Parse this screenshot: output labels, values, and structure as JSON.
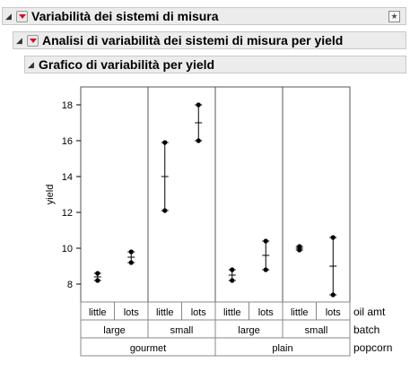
{
  "headers": {
    "level1": "Variabilità dei sistemi di misura",
    "level2": "Analisi di variabilità dei sistemi di misura per yield",
    "level3": "Grafico di variabilità per yield"
  },
  "icons": {
    "disclosure": "disclosure-triangle-icon",
    "menu": "red-triangle-menu-icon",
    "pin": "pin-icon"
  },
  "colors": {
    "menu_arrow": "#d4122a",
    "header_bg": "#ececec"
  },
  "chart_data": {
    "type": "variability",
    "ylabel": "yield",
    "ylim": [
      7,
      19
    ],
    "yticks": [
      8,
      10,
      12,
      14,
      16,
      18
    ],
    "factor_labels": [
      "oil amt",
      "batch",
      "popcorn"
    ],
    "popcorn": [
      {
        "label": "gourmet",
        "batches": [
          {
            "label": "large",
            "oil": [
              {
                "label": "little",
                "points": [
                  8.2,
                  8.6
                ],
                "mean": 8.4
              },
              {
                "label": "lots",
                "points": [
                  9.2,
                  9.8
                ],
                "mean": 9.5
              }
            ]
          },
          {
            "label": "small",
            "oil": [
              {
                "label": "little",
                "points": [
                  12.1,
                  15.9
                ],
                "mean": 14.0
              },
              {
                "label": "lots",
                "points": [
                  16.0,
                  18.0
                ],
                "mean": 17.0
              }
            ]
          }
        ]
      },
      {
        "label": "plain",
        "batches": [
          {
            "label": "large",
            "oil": [
              {
                "label": "little",
                "points": [
                  8.2,
                  8.8
                ],
                "mean": 8.5
              },
              {
                "label": "lots",
                "points": [
                  8.8,
                  10.4
                ],
                "mean": 9.6
              }
            ]
          },
          {
            "label": "small",
            "oil": [
              {
                "label": "little",
                "points": [
                  9.9,
                  10.1
                ],
                "mean": 10.0
              },
              {
                "label": "lots",
                "points": [
                  7.4,
                  10.6
                ],
                "mean": 9.0
              }
            ]
          }
        ]
      }
    ]
  }
}
